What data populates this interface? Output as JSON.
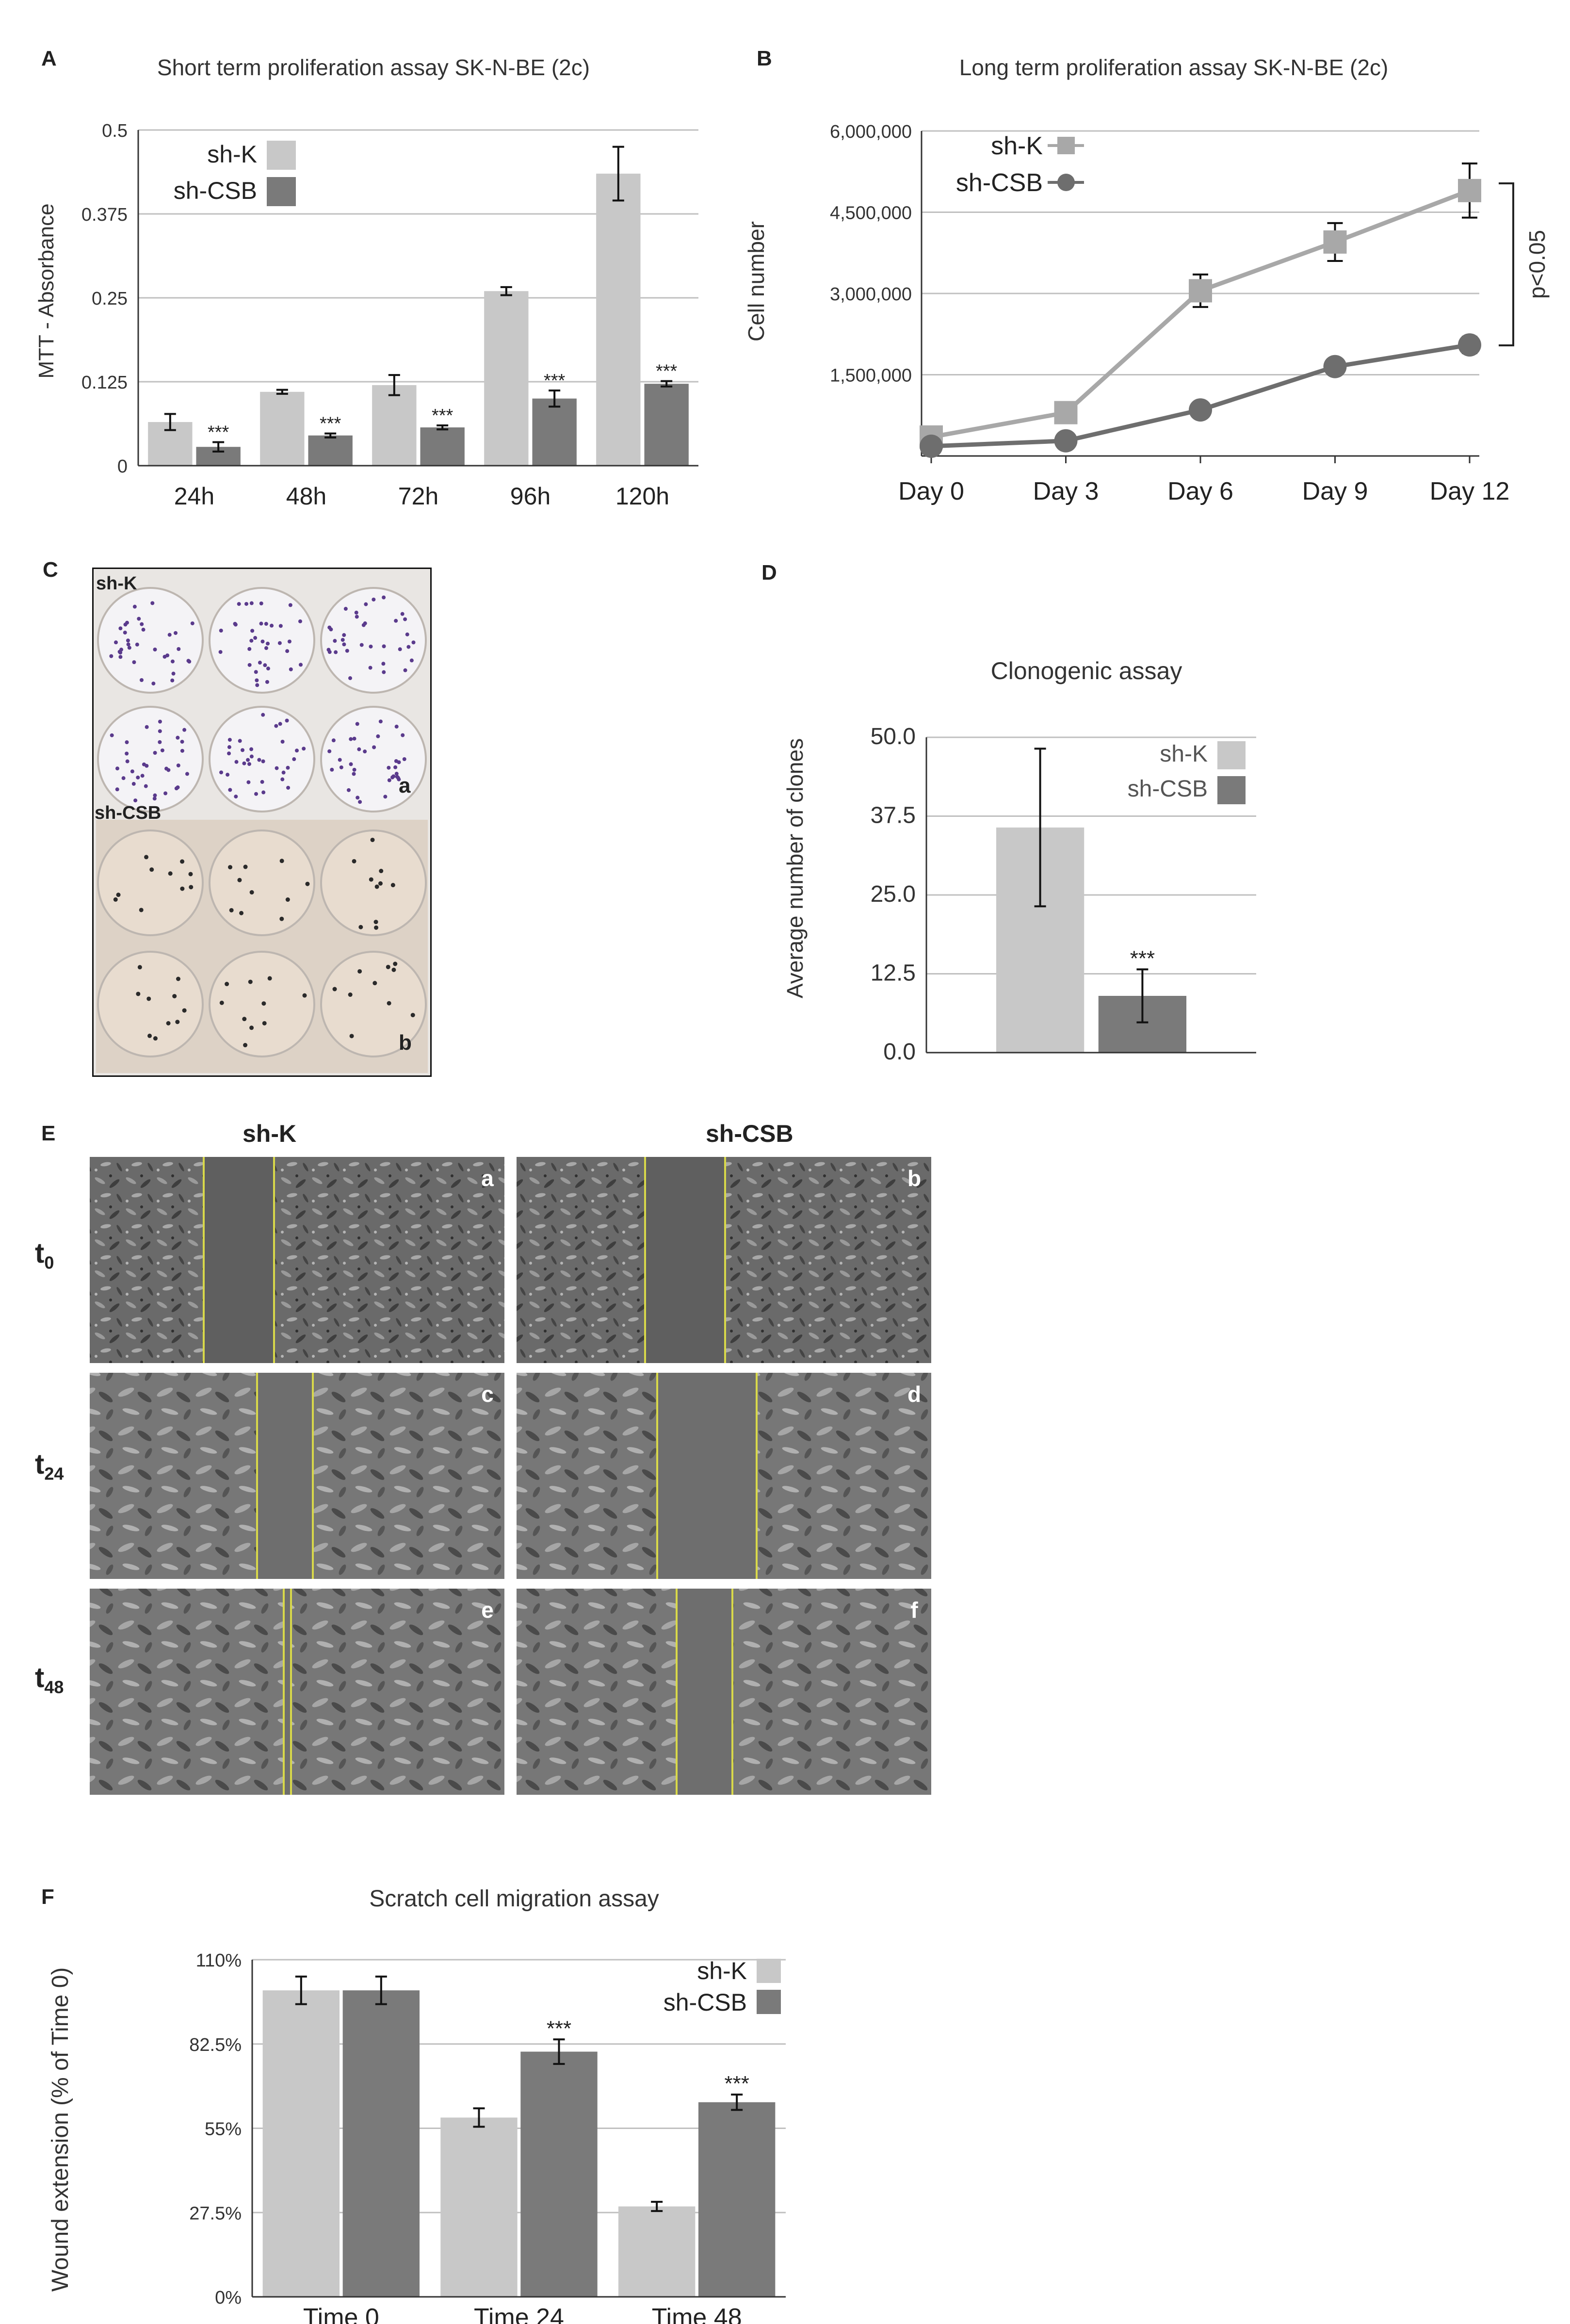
{
  "panels": {
    "A": {
      "letter": "A",
      "title": "Short term proliferation assay SK-N-BE (2c)"
    },
    "B": {
      "letter": "B",
      "title": "Long term proliferation assay SK-N-BE (2c)"
    },
    "C": {
      "letter": "C",
      "label_top": "sh-K",
      "label_bottom": "sh-CSB",
      "sub_a": "a",
      "sub_b": "b"
    },
    "D": {
      "letter": "D",
      "title": "Clonogenic assay"
    },
    "E": {
      "letter": "E",
      "col_left": "sh-K",
      "col_right": "sh-CSB",
      "rows": [
        {
          "t": "t",
          "sub": "0"
        },
        {
          "t": "t",
          "sub": "24"
        },
        {
          "t": "t",
          "sub": "48"
        }
      ],
      "cells": [
        "a",
        "b",
        "c",
        "d",
        "e",
        "f"
      ]
    },
    "F": {
      "letter": "F",
      "title": "Scratch cell migration assay"
    }
  },
  "colors": {
    "light": "#c8c8c8",
    "dark": "#7a7a7a",
    "grid": "#c0c0c0",
    "lineLight": "#a8a8a8",
    "lineDark": "#6e6e6e"
  },
  "chart_data": [
    {
      "id": "A",
      "type": "bar",
      "title": "Short term proliferation assay SK-N-BE (2c)",
      "ylabel": "MTT - Absorbance",
      "xlabel": "",
      "categories": [
        "24h",
        "48h",
        "72h",
        "96h",
        "120h"
      ],
      "yticks": [
        "0",
        "0.125",
        "0.25",
        "0.375",
        "0.5"
      ],
      "ylim": [
        0,
        0.5
      ],
      "series": [
        {
          "name": "sh-K",
          "values": [
            0.065,
            0.11,
            0.12,
            0.26,
            0.435
          ],
          "errors": [
            0.012,
            0.003,
            0.015,
            0.006,
            0.04
          ],
          "sig": [
            "",
            "",
            "",
            "",
            ""
          ]
        },
        {
          "name": "sh-CSB",
          "values": [
            0.028,
            0.045,
            0.057,
            0.1,
            0.122
          ],
          "errors": [
            0.007,
            0.003,
            0.003,
            0.012,
            0.004
          ],
          "sig": [
            "***",
            "***",
            "***",
            "***",
            "***"
          ]
        }
      ],
      "legend": "top-left"
    },
    {
      "id": "B",
      "type": "line",
      "title": "Long term proliferation assay SK-N-BE (2c)",
      "ylabel": "Cell number",
      "xlabel": "",
      "categories": [
        "Day 0",
        "Day 3",
        "Day 6",
        "Day 9",
        "Day 12"
      ],
      "yticks": [
        "",
        "1,500,000",
        "3,000,000",
        "4,500,000",
        "6,000,000"
      ],
      "ylim": [
        0,
        6000000
      ],
      "series": [
        {
          "name": "sh-K",
          "marker": "square",
          "values": [
            350000,
            800000,
            3050000,
            3950000,
            4900000
          ],
          "errors": [
            80000,
            130000,
            300000,
            350000,
            500000
          ]
        },
        {
          "name": "sh-CSB",
          "marker": "circle",
          "values": [
            180000,
            280000,
            850000,
            1650000,
            2050000
          ],
          "errors": [
            50000,
            50000,
            80000,
            100000,
            150000
          ]
        }
      ],
      "annotation": "p<0.05",
      "legend": "top-left"
    },
    {
      "id": "D",
      "type": "bar",
      "title": "Clonogenic assay",
      "ylabel": "Average number of clones",
      "xlabel": "",
      "categories": [
        ""
      ],
      "yticks": [
        "0.0",
        "12.5",
        "25.0",
        "37.5",
        "50.0"
      ],
      "ylim": [
        0,
        50
      ],
      "series": [
        {
          "name": "sh-K",
          "values": [
            35.7
          ],
          "errors": [
            12.5
          ],
          "sig": [
            ""
          ]
        },
        {
          "name": "sh-CSB",
          "values": [
            9
          ],
          "errors": [
            4.2
          ],
          "sig": [
            "***"
          ]
        }
      ],
      "legend": "top-right"
    },
    {
      "id": "F",
      "type": "bar",
      "title": "Scratch cell migration assay",
      "ylabel": "Wound extension (% of Time 0)",
      "xlabel": "",
      "categories": [
        "Time 0",
        "Time 24",
        "Time 48"
      ],
      "yticks": [
        "0%",
        "27.5%",
        "55%",
        "82.5%",
        "110%"
      ],
      "ylim": [
        0,
        110
      ],
      "series": [
        {
          "name": "sh-K",
          "values": [
            100,
            58.5,
            29.5
          ],
          "errors": [
            4.5,
            3,
            1.5
          ],
          "sig": [
            "",
            "",
            ""
          ]
        },
        {
          "name": "sh-CSB",
          "values": [
            100,
            80,
            63.5
          ],
          "errors": [
            4.5,
            4,
            2.5
          ],
          "sig": [
            "",
            "***",
            "***"
          ]
        }
      ],
      "legend": "top-right"
    }
  ]
}
